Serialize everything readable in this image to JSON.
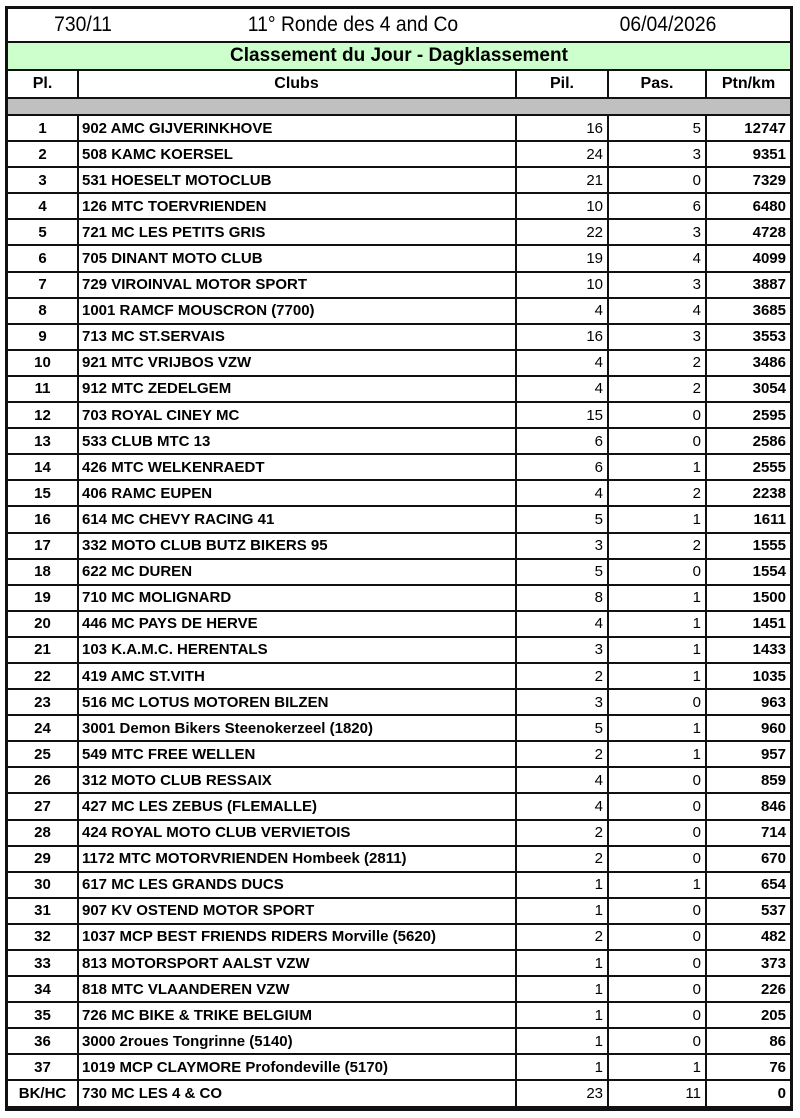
{
  "header": {
    "code": "730/11",
    "event": "11° Ronde des 4 and Co",
    "date": "06/04/2026"
  },
  "subtitle": "Classement du Jour - Dagklassement",
  "colors": {
    "subtitle_bg": "#ccffcc",
    "separator_bg": "#c0c0c0"
  },
  "columns": {
    "place": "Pl.",
    "club": "Clubs",
    "pilots": "Pil.",
    "passengers": "Pas.",
    "points": "Ptn/km"
  },
  "rows": [
    {
      "place": "1",
      "club": "902 AMC GIJVERINKHOVE",
      "pilots": "16",
      "passengers": "5",
      "points": "12747"
    },
    {
      "place": "2",
      "club": "508 KAMC KOERSEL",
      "pilots": "24",
      "passengers": "3",
      "points": "9351"
    },
    {
      "place": "3",
      "club": "531 HOESELT MOTOCLUB",
      "pilots": "21",
      "passengers": "0",
      "points": "7329"
    },
    {
      "place": "4",
      "club": "126 MTC TOERVRIENDEN",
      "pilots": "10",
      "passengers": "6",
      "points": "6480"
    },
    {
      "place": "5",
      "club": "721 MC LES PETITS GRIS",
      "pilots": "22",
      "passengers": "3",
      "points": "4728"
    },
    {
      "place": "6",
      "club": "705 DINANT MOTO CLUB",
      "pilots": "19",
      "passengers": "4",
      "points": "4099"
    },
    {
      "place": "7",
      "club": "729 VIROINVAL MOTOR SPORT",
      "pilots": "10",
      "passengers": "3",
      "points": "3887"
    },
    {
      "place": "8",
      "club": "1001 RAMCF MOUSCRON (7700)",
      "pilots": "4",
      "passengers": "4",
      "points": "3685"
    },
    {
      "place": "9",
      "club": "713 MC ST.SERVAIS",
      "pilots": "16",
      "passengers": "3",
      "points": "3553"
    },
    {
      "place": "10",
      "club": "921 MTC VRIJBOS VZW",
      "pilots": "4",
      "passengers": "2",
      "points": "3486"
    },
    {
      "place": "11",
      "club": "912 MTC ZEDELGEM",
      "pilots": "4",
      "passengers": "2",
      "points": "3054"
    },
    {
      "place": "12",
      "club": "703 ROYAL CINEY MC",
      "pilots": "15",
      "passengers": "0",
      "points": "2595"
    },
    {
      "place": "13",
      "club": "533 CLUB MTC 13",
      "pilots": "6",
      "passengers": "0",
      "points": "2586"
    },
    {
      "place": "14",
      "club": "426 MTC WELKENRAEDT",
      "pilots": "6",
      "passengers": "1",
      "points": "2555"
    },
    {
      "place": "15",
      "club": "406 RAMC EUPEN",
      "pilots": "4",
      "passengers": "2",
      "points": "2238"
    },
    {
      "place": "16",
      "club": "614 MC CHEVY RACING 41",
      "pilots": "5",
      "passengers": "1",
      "points": "1611"
    },
    {
      "place": "17",
      "club": "332 MOTO CLUB BUTZ BIKERS 95",
      "pilots": "3",
      "passengers": "2",
      "points": "1555"
    },
    {
      "place": "18",
      "club": "622 MC DUREN",
      "pilots": "5",
      "passengers": "0",
      "points": "1554"
    },
    {
      "place": "19",
      "club": "710 MC MOLIGNARD",
      "pilots": "8",
      "passengers": "1",
      "points": "1500"
    },
    {
      "place": "20",
      "club": "446 MC PAYS DE HERVE",
      "pilots": "4",
      "passengers": "1",
      "points": "1451"
    },
    {
      "place": "21",
      "club": "103 K.A.M.C. HERENTALS",
      "pilots": "3",
      "passengers": "1",
      "points": "1433"
    },
    {
      "place": "22",
      "club": "419 AMC ST.VITH",
      "pilots": "2",
      "passengers": "1",
      "points": "1035"
    },
    {
      "place": "23",
      "club": "516 MC LOTUS MOTOREN BILZEN",
      "pilots": "3",
      "passengers": "0",
      "points": "963"
    },
    {
      "place": "24",
      "club": "3001 Demon Bikers Steenokerzeel (1820)",
      "pilots": "5",
      "passengers": "1",
      "points": "960"
    },
    {
      "place": "25",
      "club": "549 MTC FREE  WELLEN",
      "pilots": "2",
      "passengers": "1",
      "points": "957"
    },
    {
      "place": "26",
      "club": "312 MOTO CLUB RESSAIX",
      "pilots": "4",
      "passengers": "0",
      "points": "859"
    },
    {
      "place": "27",
      "club": "427 MC LES ZEBUS (FLEMALLE)",
      "pilots": "4",
      "passengers": "0",
      "points": "846"
    },
    {
      "place": "28",
      "club": "424 ROYAL MOTO CLUB VERVIETOIS",
      "pilots": "2",
      "passengers": "0",
      "points": "714"
    },
    {
      "place": "29",
      "club": "1172 MTC MOTORVRIENDEN Hombeek (2811)",
      "pilots": "2",
      "passengers": "0",
      "points": "670"
    },
    {
      "place": "30",
      "club": "617 MC LES GRANDS DUCS",
      "pilots": "1",
      "passengers": "1",
      "points": "654"
    },
    {
      "place": "31",
      "club": "907 KV OSTEND MOTOR SPORT",
      "pilots": "1",
      "passengers": "0",
      "points": "537"
    },
    {
      "place": "32",
      "club": "1037 MCP BEST FRIENDS RIDERS Morville (5620)",
      "pilots": "2",
      "passengers": "0",
      "points": "482"
    },
    {
      "place": "33",
      "club": "813 MOTORSPORT AALST VZW",
      "pilots": "1",
      "passengers": "0",
      "points": "373"
    },
    {
      "place": "34",
      "club": "818 MTC VLAANDEREN VZW",
      "pilots": "1",
      "passengers": "0",
      "points": "226"
    },
    {
      "place": "35",
      "club": "726 MC BIKE & TRIKE BELGIUM",
      "pilots": "1",
      "passengers": "0",
      "points": "205"
    },
    {
      "place": "36",
      "club": "3000 2roues  Tongrinne (5140)",
      "pilots": "1",
      "passengers": "0",
      "points": "86"
    },
    {
      "place": "37",
      "club": "1019 MCP CLAYMORE Profondeville (5170)",
      "pilots": "1",
      "passengers": "1",
      "points": "76"
    },
    {
      "place": "BK/HC",
      "club": "730 MC LES 4 & CO",
      "pilots": "23",
      "passengers": "11",
      "points": "0"
    }
  ]
}
